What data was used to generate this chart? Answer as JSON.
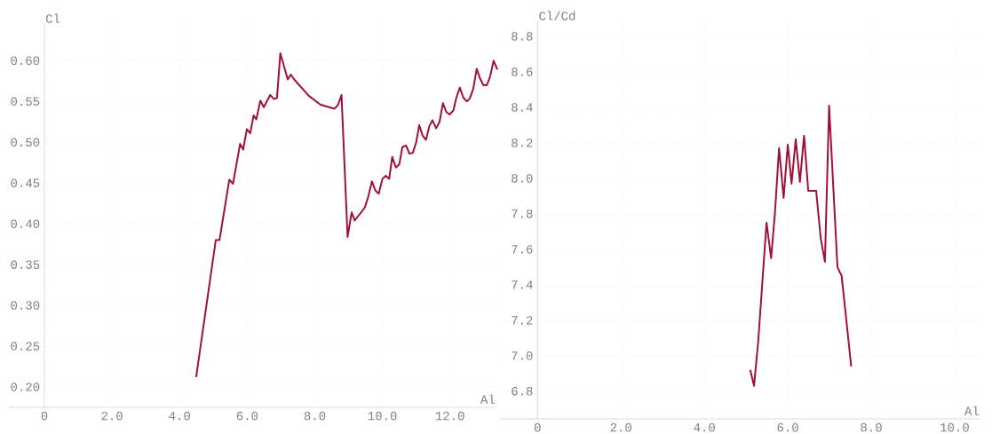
{
  "chart_data": [
    {
      "type": "line",
      "xlabel": "Al",
      "ylabel": "Cl",
      "grid": true,
      "xlim": [
        -1.05,
        13.4
      ],
      "ylim": [
        0.175,
        0.645
      ],
      "xticks": [
        {
          "value": 0,
          "label": "0"
        },
        {
          "value": 2,
          "label": "2.0"
        },
        {
          "value": 4,
          "label": "4.0"
        },
        {
          "value": 6,
          "label": "6.0"
        },
        {
          "value": 8,
          "label": "8.0"
        },
        {
          "value": 10,
          "label": "10.0"
        },
        {
          "value": 12,
          "label": "12.0"
        }
      ],
      "yticks": [
        {
          "value": 0.2,
          "label": "0.20"
        },
        {
          "value": 0.25,
          "label": "0.25"
        },
        {
          "value": 0.3,
          "label": "0.30"
        },
        {
          "value": 0.35,
          "label": "0.35"
        },
        {
          "value": 0.4,
          "label": "0.40"
        },
        {
          "value": 0.45,
          "label": "0.45"
        },
        {
          "value": 0.5,
          "label": "0.50"
        },
        {
          "value": 0.55,
          "label": "0.55"
        },
        {
          "value": 0.6,
          "label": "0.60"
        }
      ],
      "x": [
        4.49,
        5.07,
        5.18,
        5.47,
        5.58,
        5.79,
        5.88,
        5.99,
        6.09,
        6.19,
        6.27,
        6.39,
        6.49,
        6.68,
        6.79,
        6.88,
        6.98,
        7.2,
        7.29,
        7.39,
        7.82,
        8.17,
        8.58,
        8.69,
        8.79,
        8.97,
        9.09,
        9.18,
        9.48,
        9.58,
        9.69,
        9.79,
        9.89,
        10.0,
        10.1,
        10.2,
        10.29,
        10.4,
        10.5,
        10.59,
        10.7,
        10.8,
        10.9,
        11.0,
        11.09,
        11.19,
        11.29,
        11.39,
        11.48,
        11.59,
        11.69,
        11.79,
        11.89,
        11.99,
        12.1,
        12.19,
        12.29,
        12.39,
        12.5,
        12.59,
        12.69,
        12.79,
        12.89,
        12.99,
        13.09,
        13.19,
        13.29,
        13.4
      ],
      "series": [
        {
          "color": "#a0103a",
          "values": [
            0.212,
            0.38,
            0.38,
            0.454,
            0.449,
            0.498,
            0.491,
            0.516,
            0.511,
            0.533,
            0.528,
            0.551,
            0.543,
            0.558,
            0.553,
            0.554,
            0.609,
            0.577,
            0.583,
            0.577,
            0.557,
            0.546,
            0.541,
            0.546,
            0.558,
            0.384,
            0.414,
            0.404,
            0.42,
            0.433,
            0.452,
            0.441,
            0.437,
            0.455,
            0.459,
            0.455,
            0.482,
            0.469,
            0.473,
            0.494,
            0.496,
            0.486,
            0.487,
            0.5,
            0.521,
            0.508,
            0.503,
            0.52,
            0.527,
            0.517,
            0.525,
            0.548,
            0.537,
            0.534,
            0.539,
            0.555,
            0.567,
            0.555,
            0.55,
            0.554,
            0.566,
            0.59,
            0.578,
            0.57,
            0.57,
            0.581,
            0.6,
            0.589
          ]
        }
      ]
    },
    {
      "type": "line",
      "xlabel": "Al",
      "ylabel": "Cl/Cd",
      "grid": true,
      "xlim": [
        -0.9,
        10.64
      ],
      "ylim": [
        6.644,
        8.885
      ],
      "xticks": [
        {
          "value": 0,
          "label": "0"
        },
        {
          "value": 2,
          "label": "2.0"
        },
        {
          "value": 4,
          "label": "4.0"
        },
        {
          "value": 6,
          "label": "6.0"
        },
        {
          "value": 8,
          "label": "8.0"
        },
        {
          "value": 10,
          "label": "10.0"
        }
      ],
      "yticks": [
        {
          "value": 6.8,
          "label": "6.8"
        },
        {
          "value": 7.0,
          "label": "7.0"
        },
        {
          "value": 7.2,
          "label": "7.2"
        },
        {
          "value": 7.4,
          "label": "7.4"
        },
        {
          "value": 7.6,
          "label": "7.6"
        },
        {
          "value": 7.8,
          "label": "7.8"
        },
        {
          "value": 8.0,
          "label": "8.0"
        },
        {
          "value": 8.2,
          "label": "8.2"
        },
        {
          "value": 8.4,
          "label": "8.4"
        },
        {
          "value": 8.6,
          "label": "8.6"
        },
        {
          "value": 8.8,
          "label": "8.8"
        }
      ],
      "x": [
        5.1,
        5.19,
        5.29,
        5.49,
        5.6,
        5.69,
        5.79,
        5.9,
        6.0,
        6.09,
        6.19,
        6.29,
        6.39,
        6.49,
        6.68,
        6.79,
        6.89,
        6.99,
        7.19,
        7.29,
        7.39,
        7.52
      ],
      "series": [
        {
          "color": "#a0103a",
          "values": [
            6.92,
            6.83,
            7.08,
            7.75,
            7.55,
            7.8,
            8.17,
            7.89,
            8.19,
            7.97,
            8.22,
            7.98,
            8.24,
            7.93,
            7.93,
            7.66,
            7.53,
            8.41,
            7.5,
            7.45,
            7.23,
            6.94
          ]
        }
      ]
    }
  ]
}
